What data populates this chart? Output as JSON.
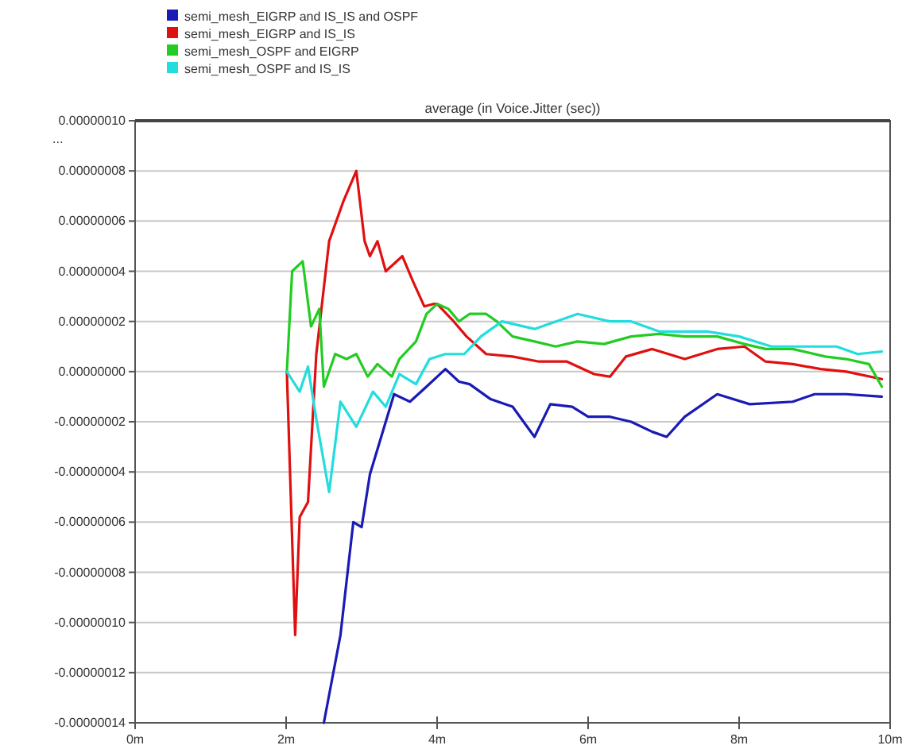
{
  "chart_data": {
    "type": "line",
    "title": "average (in Voice.Jitter (sec))",
    "ylabel": "...",
    "xlim": [
      0,
      10
    ],
    "xticks": [
      {
        "value": 0,
        "label": "0m"
      },
      {
        "value": 2,
        "label": "2m"
      },
      {
        "value": 4,
        "label": "4m"
      },
      {
        "value": 6,
        "label": "6m"
      },
      {
        "value": 8,
        "label": "8m"
      },
      {
        "value": 10,
        "label": "10m"
      }
    ],
    "ylim": [
      -1.4e-07,
      1e-07
    ],
    "yticks": [
      {
        "value": 1e-07,
        "label": "0.00000010"
      },
      {
        "value": 8e-08,
        "label": "0.00000008"
      },
      {
        "value": 6e-08,
        "label": "0.00000006"
      },
      {
        "value": 4e-08,
        "label": "0.00000004"
      },
      {
        "value": 2e-08,
        "label": "0.00000002"
      },
      {
        "value": 0,
        "label": "0.00000000"
      },
      {
        "value": -2e-08,
        "label": "-0.00000002"
      },
      {
        "value": -4e-08,
        "label": "-0.00000004"
      },
      {
        "value": -6e-08,
        "label": "-0.00000006"
      },
      {
        "value": -8e-08,
        "label": "-0.00000008"
      },
      {
        "value": -1e-07,
        "label": "-0.00000010"
      },
      {
        "value": -1.2e-07,
        "label": "-0.00000012"
      },
      {
        "value": -1.4e-07,
        "label": "-0.00000014"
      }
    ],
    "grid": "y",
    "legend": "top left",
    "marker": "none",
    "line_style": "solid",
    "series": [
      {
        "name": "semi_mesh_EIGRP and IS_IS and OSPF",
        "color": "#1a1ab4",
        "x": [
          2.5,
          2.72,
          2.89,
          3.0,
          3.11,
          3.3,
          3.43,
          3.64,
          3.86,
          4.11,
          4.29,
          4.43,
          4.71,
          5.0,
          5.29,
          5.5,
          5.79,
          6.0,
          6.29,
          6.57,
          6.85,
          7.04,
          7.28,
          7.71,
          8.14,
          8.71,
          9.0,
          9.42,
          9.89
        ],
        "values": [
          -1.4e-07,
          -1.05e-07,
          -6e-08,
          -6.2e-08,
          -4.1e-08,
          -2.2e-08,
          -9e-09,
          -1.2e-08,
          -6e-09,
          1e-09,
          -4e-09,
          -5e-09,
          -1.1e-08,
          -1.4e-08,
          -2.6e-08,
          -1.3e-08,
          -1.4e-08,
          -1.8e-08,
          -1.8e-08,
          -2e-08,
          -2.4e-08,
          -2.6e-08,
          -1.8e-08,
          -9e-09,
          -1.3e-08,
          -1.2e-08,
          -9e-09,
          -9e-09,
          -1e-08
        ]
      },
      {
        "name": "semi_mesh_EIGRP and IS_IS",
        "color": "#e01010",
        "x": [
          2.01,
          2.12,
          2.18,
          2.29,
          2.4,
          2.57,
          2.76,
          2.93,
          3.04,
          3.11,
          3.21,
          3.32,
          3.54,
          3.68,
          3.83,
          3.96,
          4.0,
          4.22,
          4.39,
          4.65,
          5.0,
          5.35,
          5.72,
          6.08,
          6.29,
          6.5,
          6.85,
          7.28,
          7.71,
          8.07,
          8.35,
          8.71,
          9.08,
          9.42,
          9.89
        ],
        "values": [
          0,
          -1.05e-07,
          -5.8e-08,
          -5.2e-08,
          7e-09,
          5.2e-08,
          6.8e-08,
          8e-08,
          5.2e-08,
          4.6e-08,
          5.2e-08,
          4e-08,
          4.6e-08,
          3.6e-08,
          2.6e-08,
          2.7e-08,
          2.7e-08,
          2e-08,
          1.4e-08,
          7e-09,
          6e-09,
          4e-09,
          4e-09,
          -1e-09,
          -2e-09,
          6e-09,
          9e-09,
          5e-09,
          9e-09,
          1e-08,
          4e-09,
          3e-09,
          1e-09,
          0,
          -3e-09
        ]
      },
      {
        "name": "semi_mesh_OSPF and EIGRP",
        "color": "#22cc22",
        "x": [
          2.01,
          2.08,
          2.22,
          2.33,
          2.44,
          2.5,
          2.65,
          2.8,
          2.93,
          3.08,
          3.21,
          3.4,
          3.5,
          3.72,
          3.86,
          4.0,
          4.15,
          4.29,
          4.43,
          4.65,
          4.79,
          5.0,
          5.29,
          5.57,
          5.86,
          6.21,
          6.57,
          6.94,
          7.28,
          7.71,
          8.07,
          8.35,
          8.71,
          9.14,
          9.42,
          9.72,
          9.89
        ],
        "values": [
          0,
          4e-08,
          4.4e-08,
          1.8e-08,
          2.5e-08,
          -6e-09,
          7e-09,
          5e-09,
          7e-09,
          -2e-09,
          3e-09,
          -2e-09,
          5e-09,
          1.2e-08,
          2.3e-08,
          2.7e-08,
          2.5e-08,
          2e-08,
          2.3e-08,
          2.3e-08,
          2e-08,
          1.4e-08,
          1.2e-08,
          1e-08,
          1.2e-08,
          1.1e-08,
          1.4e-08,
          1.5e-08,
          1.4e-08,
          1.4e-08,
          1.1e-08,
          9e-09,
          9e-09,
          6e-09,
          5e-09,
          3e-09,
          -6e-09
        ]
      },
      {
        "name": "semi_mesh_OSPF and IS_IS",
        "color": "#22dddd",
        "x": [
          2.01,
          2.18,
          2.29,
          2.4,
          2.57,
          2.72,
          2.93,
          3.15,
          3.32,
          3.5,
          3.72,
          3.9,
          4.11,
          4.36,
          4.58,
          4.86,
          5.29,
          5.86,
          6.29,
          6.57,
          6.94,
          7.58,
          8.0,
          8.43,
          8.86,
          9.29,
          9.57,
          9.89
        ],
        "values": [
          0,
          -8e-09,
          2e-09,
          -1.9e-08,
          -4.8e-08,
          -1.2e-08,
          -2.2e-08,
          -8e-09,
          -1.4e-08,
          -1e-09,
          -5e-09,
          5e-09,
          7e-09,
          7e-09,
          1.4e-08,
          2e-08,
          1.7e-08,
          2.3e-08,
          2e-08,
          2e-08,
          1.6e-08,
          1.6e-08,
          1.4e-08,
          1e-08,
          1e-08,
          1e-08,
          7e-09,
          8e-09
        ]
      }
    ]
  }
}
